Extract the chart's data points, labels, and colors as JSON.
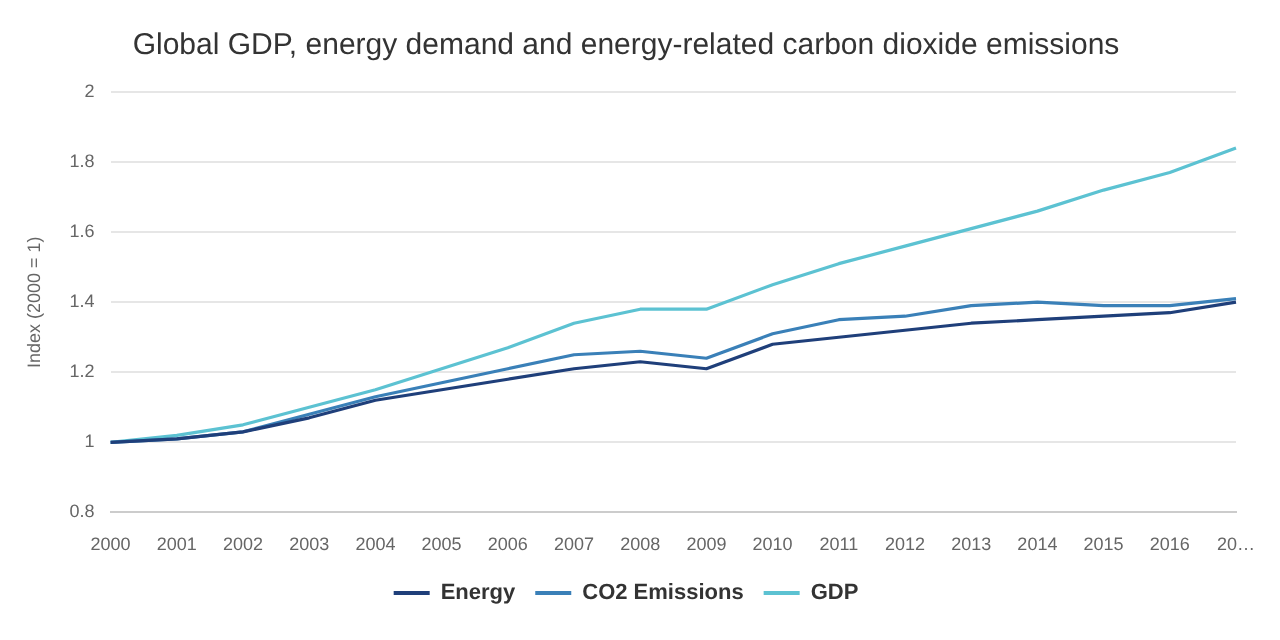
{
  "chart_data": {
    "type": "line",
    "title": "Global GDP, energy demand and energy-related carbon dioxide emissions",
    "ylabel": "Index (2000 = 1)",
    "categories": [
      "2000",
      "2001",
      "2002",
      "2003",
      "2004",
      "2005",
      "2006",
      "2007",
      "2008",
      "2009",
      "2010",
      "2011",
      "2012",
      "2013",
      "2014",
      "2015",
      "2016",
      "20…"
    ],
    "series": [
      {
        "name": "Energy",
        "color": "#1f3f7a",
        "values": [
          1.0,
          1.01,
          1.03,
          1.07,
          1.12,
          1.15,
          1.18,
          1.21,
          1.23,
          1.21,
          1.28,
          1.3,
          1.32,
          1.34,
          1.35,
          1.36,
          1.37,
          1.4
        ]
      },
      {
        "name": "CO2 Emissions",
        "color": "#3a80b8",
        "values": [
          1.0,
          1.01,
          1.03,
          1.08,
          1.13,
          1.17,
          1.21,
          1.25,
          1.26,
          1.24,
          1.31,
          1.35,
          1.36,
          1.39,
          1.4,
          1.39,
          1.39,
          1.41
        ]
      },
      {
        "name": "GDP",
        "color": "#5cc2d2",
        "values": [
          1.0,
          1.02,
          1.05,
          1.1,
          1.15,
          1.21,
          1.27,
          1.34,
          1.38,
          1.38,
          1.45,
          1.51,
          1.56,
          1.61,
          1.66,
          1.72,
          1.77,
          1.84
        ]
      }
    ],
    "ylim": [
      0.8,
      2
    ],
    "yticks": [
      0.8,
      1,
      1.2,
      1.4,
      1.6,
      1.8,
      2
    ],
    "grid": "y",
    "legend": "bottom",
    "marker": "none",
    "line_style": "solid"
  }
}
